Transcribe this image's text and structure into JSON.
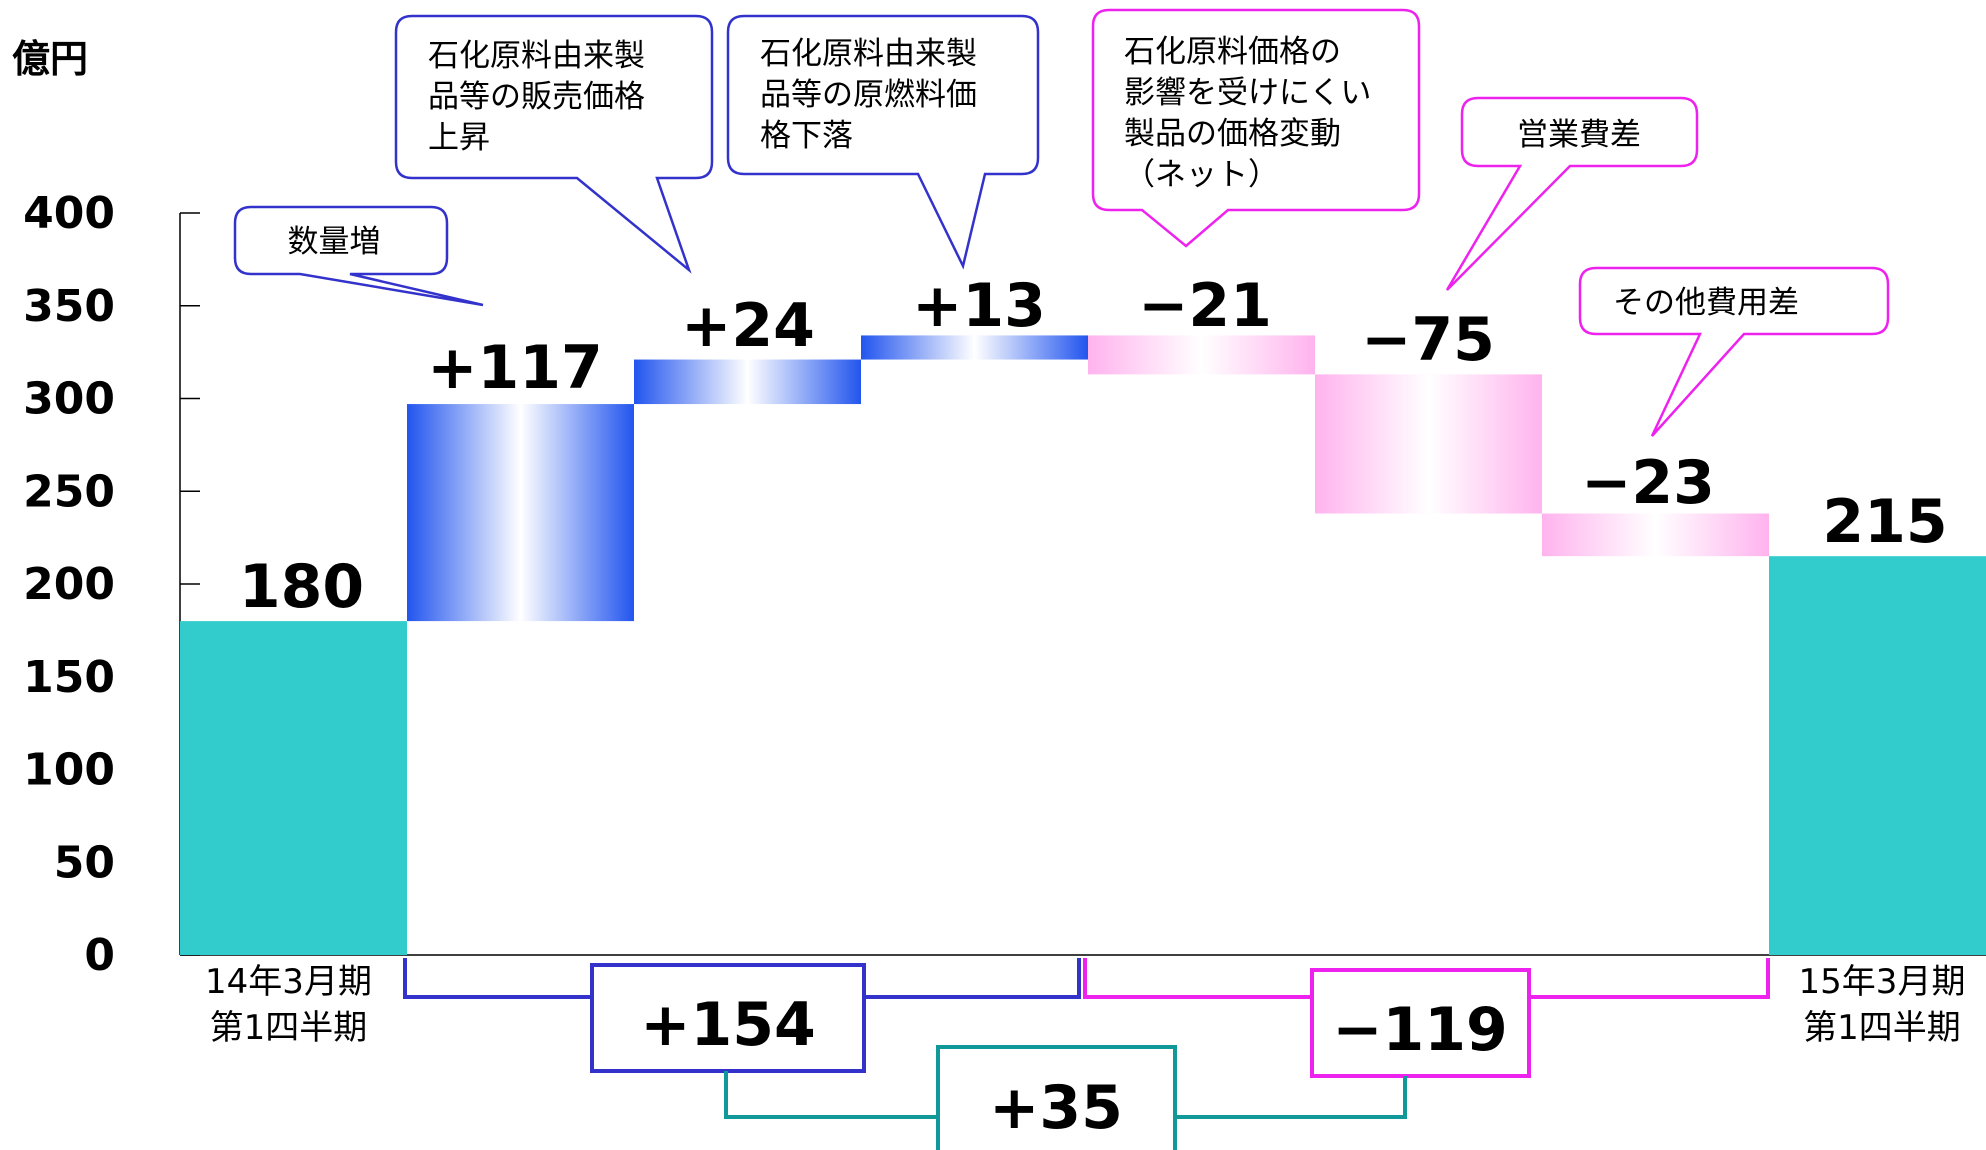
{
  "chart_data": {
    "type": "bar",
    "subtype": "waterfall",
    "ylabel": "億円",
    "ylim": [
      0,
      400
    ],
    "yticks": [
      0,
      50,
      100,
      150,
      200,
      250,
      300,
      350,
      400
    ],
    "start": {
      "label_line1": "14年3月期",
      "label_line2": "第1四半期",
      "value": 180,
      "value_label": "180"
    },
    "end": {
      "label_line1": "15年3月期",
      "label_line2": "第1四半期",
      "value": 215,
      "value_label": "215"
    },
    "steps": [
      {
        "value": 117,
        "value_label": "+117",
        "callout": [
          "数量増"
        ]
      },
      {
        "value": 24,
        "value_label": "+24",
        "callout": [
          "石化原料由来製",
          "品等の販売価格",
          "上昇"
        ]
      },
      {
        "value": 13,
        "value_label": "+13",
        "callout": [
          "石化原料由来製",
          "品等の原燃料価",
          "格下落"
        ]
      },
      {
        "value": -21,
        "value_label": "−21",
        "callout": [
          "石化原料価格の",
          "影響を受けにくい",
          "製品の価格変動",
          "（ネット）"
        ]
      },
      {
        "value": -75,
        "value_label": "−75",
        "callout": [
          "営業費差"
        ]
      },
      {
        "value": -23,
        "value_label": "−23",
        "callout": [
          "その他費用差"
        ]
      }
    ],
    "subtotals": {
      "positive": "+154",
      "negative": "−119",
      "net": "+35"
    },
    "colors": {
      "base": "#33CCCC",
      "increase": "#2255EE",
      "decrease": "#FFB3EE",
      "positive_bracket": "#3333CC",
      "negative_bracket": "#EE22EE",
      "net_bracket": "#119999",
      "increase_callout": "#3333CC",
      "decrease_callout": "#EE22EE"
    }
  }
}
